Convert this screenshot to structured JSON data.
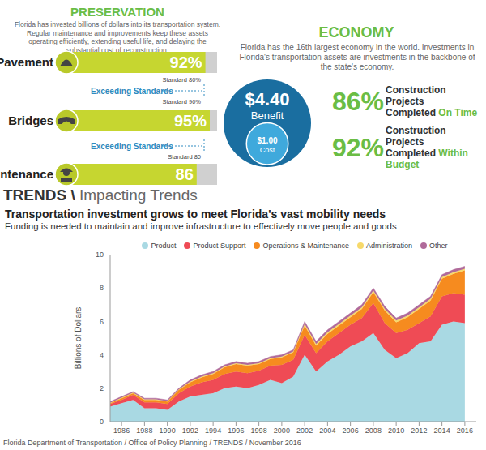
{
  "preservation": {
    "title": "PRESERVATION",
    "text": "Florida has invested billions of dollars into its transportation system. Regular maintenance and improvements keep these assets operating efficiently, extending useful life, and delaying the substantial cost of reconstruction.",
    "rows": [
      {
        "label": "Pavement",
        "value": 92,
        "value_label": "92%",
        "standard": "Standard 80%"
      },
      {
        "label": "Bridges",
        "value": 95,
        "value_label": "95%",
        "standard": "Standard 90%"
      },
      {
        "label": "Maintenance",
        "value": 86,
        "value_label": "86",
        "standard": "Standard 80"
      }
    ],
    "connectors": [
      "Exceeding Standards",
      "Exceeding Standards"
    ]
  },
  "economy": {
    "title": "ECONOMY",
    "text": "Florida has the 16th largest economy in the world. Investments in Florida's transportation assets are investments in the backbone of the state's economy.",
    "benefit": {
      "value": 4.4,
      "value_label": "$4.40",
      "label": "Benefit"
    },
    "cost": {
      "value": 1,
      "value_label": "$1.00",
      "label": "Cost"
    },
    "stats": [
      {
        "value": 86,
        "value_label": "86%",
        "line1": "Construction Projects",
        "line2": "Completed",
        "emphasis": "On Time"
      },
      {
        "value": 92,
        "value_label": "92%",
        "line1": "Construction Projects",
        "line2": "Completed",
        "emphasis": "Within Budget"
      }
    ]
  },
  "trends": {
    "heading": "TRENDS \\",
    "subheading": "Impacting Trends"
  },
  "chart_data": {
    "type": "area",
    "title": "Transportation investment grows to meet Florida's vast mobility needs",
    "subtitle": "Funding is needed to maintain and improve infrastructure to effectively move people and goods",
    "y_label": "Billions of Dollars",
    "stacked": true,
    "grid": false,
    "legend": "top",
    "x": [
      1985,
      1986,
      1987,
      1988,
      1989,
      1990,
      1991,
      1992,
      1993,
      1994,
      1995,
      1996,
      1997,
      1998,
      1999,
      2000,
      2001,
      2002,
      2003,
      2004,
      2005,
      2006,
      2007,
      2008,
      2009,
      2010,
      2011,
      2012,
      2013,
      2014,
      2015,
      2016
    ],
    "xlim": [
      1985,
      2017
    ],
    "xticks": [
      1986,
      1988,
      1990,
      1992,
      1994,
      1996,
      1998,
      2000,
      2002,
      2004,
      2006,
      2008,
      2010,
      2012,
      2014,
      2016
    ],
    "ylim": [
      0,
      10
    ],
    "yticks": [
      0,
      2,
      4,
      6,
      8,
      10
    ],
    "series": [
      {
        "name": "Product",
        "color": "#a9d9e3",
        "values": [
          0.9,
          1.1,
          1.3,
          0.8,
          0.8,
          0.7,
          1.2,
          1.5,
          1.6,
          1.7,
          2.0,
          2.1,
          2.0,
          2.2,
          2.5,
          2.3,
          2.7,
          4.0,
          3.0,
          3.6,
          4.0,
          4.5,
          4.8,
          5.3,
          4.3,
          3.8,
          4.1,
          4.7,
          4.8,
          5.8,
          6.0,
          5.9
        ]
      },
      {
        "name": "Product Support",
        "color": "#ef4b55",
        "values": [
          0.15,
          0.2,
          0.3,
          0.35,
          0.35,
          0.35,
          0.5,
          0.6,
          0.75,
          0.8,
          0.85,
          0.9,
          0.9,
          0.85,
          0.85,
          1.1,
          1.0,
          1.2,
          1.1,
          1.2,
          1.3,
          1.3,
          1.4,
          1.8,
          1.6,
          1.5,
          1.4,
          1.2,
          1.5,
          1.7,
          1.7,
          1.7
        ]
      },
      {
        "name": "Operations & Maintenance",
        "color": "#f68b1f",
        "values": [
          0.05,
          0.1,
          0.1,
          0.15,
          0.15,
          0.15,
          0.2,
          0.25,
          0.3,
          0.35,
          0.4,
          0.45,
          0.45,
          0.4,
          0.4,
          0.45,
          0.45,
          0.55,
          0.45,
          0.45,
          0.45,
          0.45,
          0.55,
          0.65,
          0.75,
          0.65,
          0.75,
          0.85,
          0.95,
          1.05,
          1.15,
          1.45
        ]
      },
      {
        "name": "Administration",
        "color": "#f7d96a",
        "values": [
          0.03,
          0.03,
          0.03,
          0.03,
          0.03,
          0.03,
          0.03,
          0.05,
          0.05,
          0.05,
          0.05,
          0.05,
          0.05,
          0.05,
          0.05,
          0.05,
          0.05,
          0.1,
          0.1,
          0.1,
          0.1,
          0.1,
          0.1,
          0.1,
          0.1,
          0.1,
          0.1,
          0.1,
          0.1,
          0.1,
          0.1,
          0.1
        ]
      },
      {
        "name": "Other",
        "color": "#b06a9a",
        "values": [
          0.07,
          0.07,
          0.07,
          0.07,
          0.07,
          0.07,
          0.07,
          0.1,
          0.1,
          0.1,
          0.1,
          0.1,
          0.1,
          0.1,
          0.1,
          0.1,
          0.1,
          0.15,
          0.15,
          0.15,
          0.15,
          0.15,
          0.15,
          0.15,
          0.15,
          0.15,
          0.15,
          0.15,
          0.15,
          0.15,
          0.15,
          0.15
        ]
      }
    ]
  },
  "footer": "Florida Department of Transportation / Office of Policy Planning / TRENDS / November 2016"
}
